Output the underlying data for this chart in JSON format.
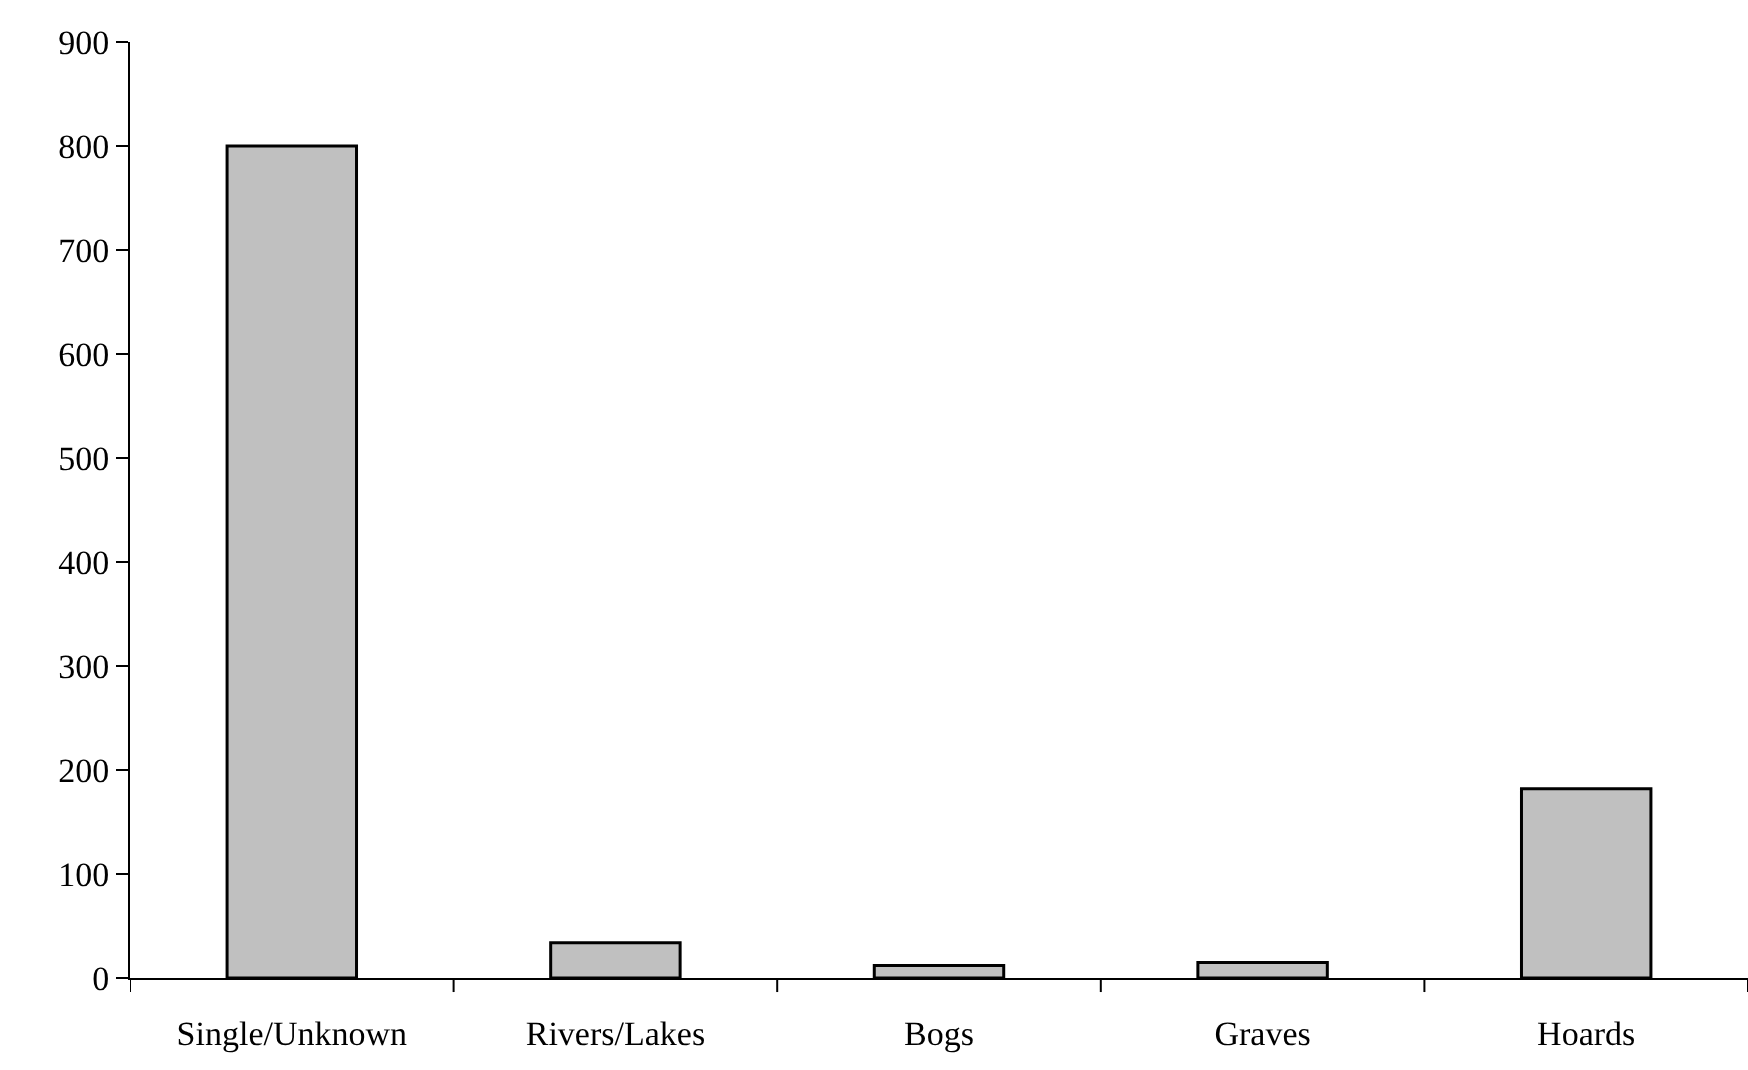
{
  "chart_data": {
    "type": "bar",
    "categories": [
      "Single/Unknown",
      "Rivers/Lakes",
      "Bogs",
      "Graves",
      "Hoards"
    ],
    "values": [
      800,
      34,
      12,
      15,
      182
    ],
    "color": "#c0c0c0",
    "ylim": [
      0,
      900
    ],
    "yticks": [
      0,
      100,
      200,
      300,
      400,
      500,
      600,
      700,
      800,
      900
    ],
    "grid": null
  }
}
